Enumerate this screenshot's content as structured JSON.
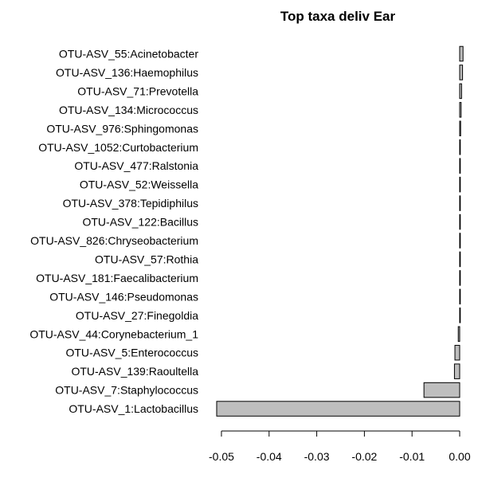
{
  "chart_data": {
    "type": "bar",
    "orientation": "horizontal",
    "title": "Top taxa deliv Ear",
    "xlabel": "",
    "ylabel": "",
    "categories": [
      "OTU-ASV_55:Acinetobacter",
      "OTU-ASV_136:Haemophilus",
      "OTU-ASV_71:Prevotella",
      "OTU-ASV_134:Micrococcus",
      "OTU-ASV_976:Sphingomonas",
      "OTU-ASV_1052:Curtobacterium",
      "OTU-ASV_477:Ralstonia",
      "OTU-ASV_52:Weissella",
      "OTU-ASV_378:Tepidiphilus",
      "OTU-ASV_122:Bacillus",
      "OTU-ASV_826:Chryseobacterium",
      "OTU-ASV_57:Rothia",
      "OTU-ASV_181:Faecalibacterium",
      "OTU-ASV_146:Pseudomonas",
      "OTU-ASV_27:Finegoldia",
      "OTU-ASV_44:Corynebacterium_1",
      "OTU-ASV_5:Enterococcus",
      "OTU-ASV_139:Raoultella",
      "OTU-ASV_7:Staphylococcus",
      "OTU-ASV_1:Lactobacillus"
    ],
    "values": [
      0.0007,
      0.0006,
      0.0004,
      0.0003,
      0.0002,
      0.0001,
      0.0001,
      0.0001,
      0.0001,
      0.0001,
      0.0001,
      0.0001,
      0.0001,
      0.0001,
      0.0001,
      -0.0003,
      -0.001,
      -0.0011,
      -0.0075,
      -0.051
    ],
    "xlim": [
      -0.052,
      0.0005
    ],
    "xticks": [
      -0.05,
      -0.04,
      -0.03,
      -0.02,
      -0.01,
      0.0
    ],
    "xtick_labels": [
      "-0.05",
      "-0.04",
      "-0.03",
      "-0.02",
      "-0.01",
      "0.00"
    ],
    "bar_color": "#bebebe",
    "bar_border_color": "#000000",
    "grid": false,
    "legend": "none"
  }
}
